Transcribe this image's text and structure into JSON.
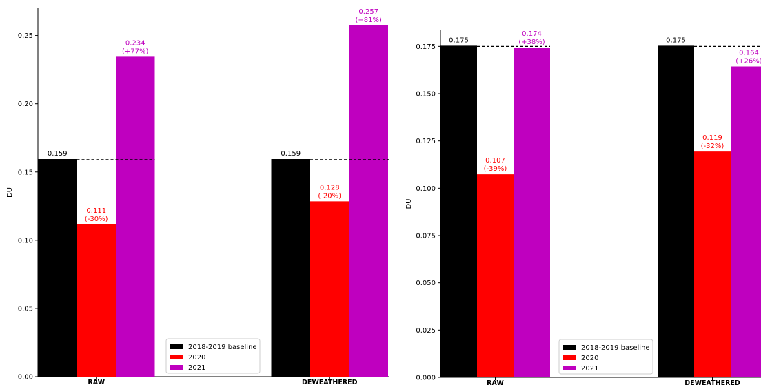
{
  "chart_data": [
    {
      "type": "bar",
      "categories": [
        "RAW",
        "DEWEATHERED"
      ],
      "series": [
        {
          "name": "2018-2019 baseline",
          "color": "#000000",
          "values": [
            0.159,
            0.159
          ],
          "labels": [
            "0.159",
            "0.159"
          ],
          "label_color": "#000000"
        },
        {
          "name": "2020",
          "color": "#ff0000",
          "values": [
            0.111,
            0.128
          ],
          "labels": [
            "0.111\n(-30%)",
            "0.128\n(-20%)"
          ],
          "label_color": "#ff0000"
        },
        {
          "name": "2021",
          "color": "#bf00bf",
          "values": [
            0.234,
            0.257
          ],
          "labels": [
            "0.234\n(+77%)",
            "0.257\n(+81%)"
          ],
          "label_color": "#bf00bf"
        }
      ],
      "ylabel": "DU",
      "ylim": [
        0,
        0.27
      ],
      "yticks": [
        "0.00",
        "0.05",
        "0.10",
        "0.15",
        "0.20",
        "0.25"
      ],
      "baseline_lines": [
        0.159,
        0.159
      ],
      "legend_position": "lower-right",
      "grid": false
    },
    {
      "type": "bar",
      "categories": [
        "RAW",
        "DEWEATHERED"
      ],
      "series": [
        {
          "name": "2018-2019 baseline",
          "color": "#000000",
          "values": [
            0.175,
            0.175
          ],
          "labels": [
            "0.175",
            "0.175"
          ],
          "label_color": "#000000"
        },
        {
          "name": "2020",
          "color": "#ff0000",
          "values": [
            0.107,
            0.119
          ],
          "labels": [
            "0.107\n(-39%)",
            "0.119\n(-32%)"
          ],
          "label_color": "#ff0000"
        },
        {
          "name": "2021",
          "color": "#bf00bf",
          "values": [
            0.174,
            0.164
          ],
          "labels": [
            "0.174\n(+38%)",
            "0.164\n(+26%)"
          ],
          "label_color": "#bf00bf"
        }
      ],
      "ylabel": "DU",
      "ylim": [
        0,
        0.1835
      ],
      "yticks": [
        "0.000",
        "0.025",
        "0.050",
        "0.075",
        "0.100",
        "0.125",
        "0.150",
        "0.175"
      ],
      "baseline_lines": [
        0.175,
        0.175
      ],
      "legend_position": "lower-right",
      "grid": false
    }
  ]
}
